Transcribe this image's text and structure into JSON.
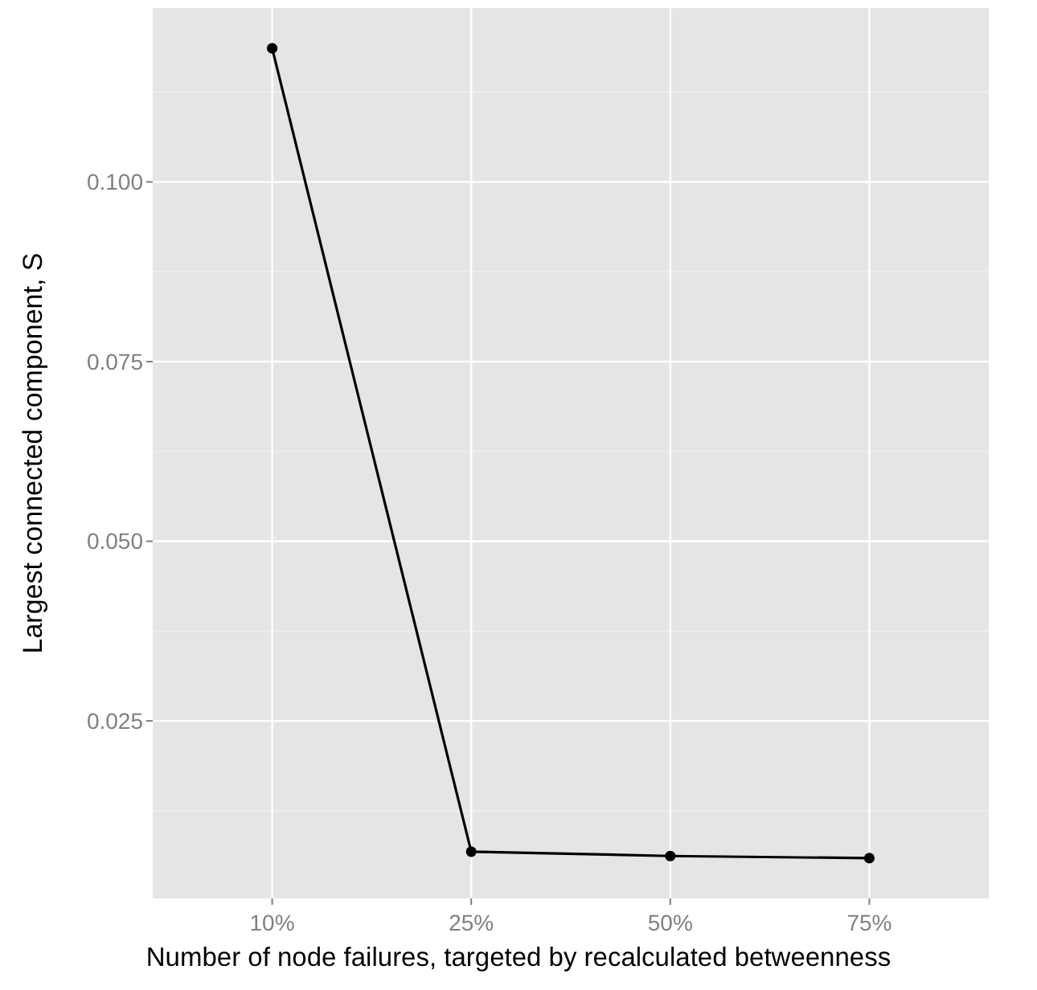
{
  "chart_data": {
    "type": "line",
    "xlabel": "Number of node failures, targeted by recalculated betweenness",
    "ylabel": "Largest connected component, S",
    "categories": [
      "10%",
      "25%",
      "50%",
      "75%"
    ],
    "series": [
      {
        "color": "#000000",
        "values": [
          0.1186,
          0.0068,
          0.0062,
          0.0059
        ]
      }
    ],
    "ylim": [
      0.0003,
      0.1242
    ],
    "yticks": [
      0.025,
      {
        "value": 0.05,
        "label": "0.050"
      },
      0.075,
      {
        "value": 0.1,
        "label": "0.100"
      }
    ],
    "grid": true,
    "marker": "circle",
    "line_style": "solid"
  }
}
